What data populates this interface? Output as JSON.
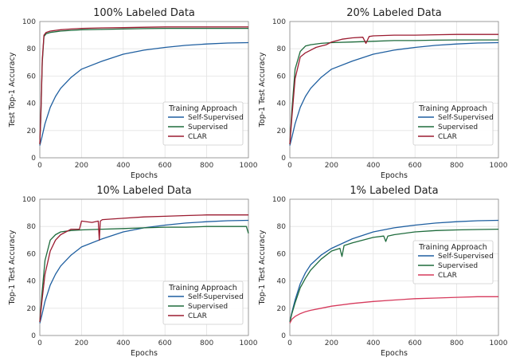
{
  "colors": {
    "self_supervised": "#1f5fa0",
    "supervised": "#1e6b3c",
    "clar": "#9b1b30",
    "clar_1pct": "#d63a5c",
    "grid": "#e3e3e3",
    "axis": "#888888"
  },
  "chart_data": [
    {
      "type": "line",
      "title": "100% Labeled Data",
      "xlabel": "Epochs",
      "ylabel": "Test Top-1 Accuracy",
      "xlim": [
        0,
        1000
      ],
      "ylim": [
        0,
        100
      ],
      "xticks": [
        "0",
        "200",
        "400",
        "600",
        "800",
        "1000"
      ],
      "yticks": [
        "0",
        "20",
        "40",
        "60",
        "80",
        "100"
      ],
      "grid": true,
      "legend": {
        "title": "Training Approach",
        "placement": "bottom-right"
      },
      "series": [
        {
          "name": "Self-Supervised",
          "color": "#1f5fa0",
          "x": [
            0,
            10,
            25,
            50,
            75,
            100,
            150,
            200,
            300,
            400,
            500,
            600,
            700,
            800,
            900,
            1000
          ],
          "y": [
            9,
            15,
            25,
            37,
            45,
            51,
            59,
            65,
            71,
            76,
            79,
            81,
            82.5,
            83.5,
            84.2,
            84.5
          ]
        },
        {
          "name": "Supervised",
          "color": "#1e6b3c",
          "x": [
            0,
            5,
            12,
            20,
            30,
            50,
            75,
            100,
            150,
            200,
            300,
            400,
            500,
            600,
            700,
            800,
            900,
            1000
          ],
          "y": [
            10,
            30,
            70,
            89,
            91,
            92,
            92.5,
            93,
            93.5,
            94,
            94.2,
            94.5,
            94.8,
            95,
            95,
            95,
            95,
            95
          ]
        },
        {
          "name": "CLAR",
          "color": "#9b1b30",
          "x": [
            0,
            5,
            12,
            20,
            30,
            50,
            75,
            100,
            150,
            200,
            300,
            400,
            500,
            600,
            700,
            800,
            900,
            1000
          ],
          "y": [
            10,
            32,
            72,
            90,
            92,
            93,
            93.5,
            94,
            94.5,
            95,
            95.3,
            95.5,
            95.8,
            96,
            96,
            96,
            96,
            96
          ]
        }
      ]
    },
    {
      "type": "line",
      "title": "20% Labeled Data",
      "xlabel": "Epochs",
      "ylabel": "Top-1 Test Accuracy",
      "xlim": [
        0,
        1000
      ],
      "ylim": [
        0,
        100
      ],
      "xticks": [
        "0",
        "200",
        "400",
        "600",
        "800",
        "1000"
      ],
      "yticks": [
        "0",
        "20",
        "40",
        "60",
        "80",
        "100"
      ],
      "grid": true,
      "legend": {
        "title": "Training Approach",
        "placement": "bottom-right"
      },
      "series": [
        {
          "name": "Self-Supervised",
          "color": "#1f5fa0",
          "x": [
            0,
            10,
            25,
            50,
            75,
            100,
            150,
            200,
            300,
            400,
            500,
            600,
            700,
            800,
            900,
            1000
          ],
          "y": [
            9,
            15,
            25,
            37,
            45,
            51,
            59,
            65,
            71,
            76,
            79,
            81,
            82.5,
            83.5,
            84.2,
            84.5
          ]
        },
        {
          "name": "Supervised",
          "color": "#1e6b3c",
          "x": [
            0,
            10,
            25,
            50,
            75,
            100,
            150,
            200,
            300,
            400,
            500,
            600,
            700,
            800,
            900,
            1000
          ],
          "y": [
            10,
            35,
            65,
            78,
            82,
            83,
            84,
            84.5,
            85,
            85.5,
            86,
            86,
            86.3,
            86.5,
            86.5,
            86.5
          ]
        },
        {
          "name": "CLAR",
          "color": "#9b1b30",
          "x": [
            0,
            10,
            25,
            50,
            75,
            100,
            125,
            150,
            175,
            200,
            250,
            300,
            350,
            365,
            380,
            400,
            500,
            600,
            700,
            800,
            900,
            1000
          ],
          "y": [
            10,
            30,
            58,
            74,
            77,
            79,
            81,
            82,
            83,
            85,
            87,
            88,
            88.5,
            84,
            89,
            89.5,
            90,
            90,
            90.3,
            90.5,
            90.5,
            90.5
          ]
        }
      ]
    },
    {
      "type": "line",
      "title": "10% Labeled Data",
      "xlabel": "Epochs",
      "ylabel": "Top-1 Test Accuracy",
      "xlim": [
        0,
        1000
      ],
      "ylim": [
        0,
        100
      ],
      "xticks": [
        "0",
        "200",
        "400",
        "600",
        "800",
        "1000"
      ],
      "yticks": [
        "0",
        "20",
        "40",
        "60",
        "80",
        "100"
      ],
      "grid": true,
      "legend": {
        "title": "Training Approach",
        "placement": "bottom-right"
      },
      "series": [
        {
          "name": "Self-Supervised",
          "color": "#1f5fa0",
          "x": [
            0,
            10,
            25,
            50,
            75,
            100,
            150,
            200,
            300,
            400,
            500,
            600,
            700,
            800,
            900,
            1000
          ],
          "y": [
            9,
            15,
            25,
            37,
            45,
            51,
            59,
            65,
            71,
            76,
            79,
            81,
            82.5,
            83.5,
            84.2,
            84.5
          ]
        },
        {
          "name": "Supervised",
          "color": "#1e6b3c",
          "x": [
            0,
            10,
            25,
            50,
            75,
            100,
            150,
            200,
            300,
            400,
            500,
            600,
            700,
            800,
            900,
            990,
            1000
          ],
          "y": [
            10,
            30,
            55,
            70,
            74,
            76,
            77,
            77.5,
            78,
            78.5,
            79,
            79.5,
            79.5,
            80,
            80,
            80,
            75
          ]
        },
        {
          "name": "CLAR",
          "color": "#9b1b30",
          "x": [
            0,
            10,
            25,
            50,
            75,
            100,
            150,
            190,
            200,
            250,
            280,
            285,
            290,
            300,
            400,
            500,
            600,
            700,
            800,
            900,
            1000
          ],
          "y": [
            10,
            25,
            45,
            62,
            70,
            74,
            78,
            78,
            84,
            83,
            84,
            70,
            84,
            85,
            86,
            87,
            87.5,
            88,
            88.5,
            88.5,
            88.5
          ]
        }
      ]
    },
    {
      "type": "line",
      "title": "1% Labeled Data",
      "xlabel": "Epochs",
      "ylabel": "Top-1 Test Accuracy",
      "xlim": [
        0,
        1000
      ],
      "ylim": [
        0,
        100
      ],
      "xticks": [
        "0",
        "200",
        "400",
        "600",
        "800",
        "1000"
      ],
      "yticks": [
        "0",
        "20",
        "40",
        "60",
        "80",
        "100"
      ],
      "grid": true,
      "legend": {
        "title": "Training Approach",
        "placement": "middle-right"
      },
      "series": [
        {
          "name": "Self-Supervised",
          "color": "#1f5fa0",
          "x": [
            0,
            10,
            25,
            50,
            75,
            100,
            150,
            200,
            300,
            400,
            500,
            600,
            700,
            800,
            900,
            1000
          ],
          "y": [
            10,
            17,
            26,
            38,
            46,
            52,
            59,
            64,
            71,
            76,
            79,
            81,
            82.5,
            83.5,
            84.2,
            84.5
          ]
        },
        {
          "name": "Supervised",
          "color": "#1e6b3c",
          "x": [
            0,
            10,
            25,
            50,
            75,
            100,
            150,
            200,
            240,
            250,
            260,
            300,
            400,
            450,
            460,
            470,
            500,
            600,
            700,
            800,
            900,
            1000
          ],
          "y": [
            10,
            16,
            24,
            35,
            42,
            48,
            56,
            62,
            64,
            58,
            66,
            68,
            72,
            73,
            69,
            73,
            74,
            76,
            77,
            77.5,
            77.8,
            78
          ]
        },
        {
          "name": "CLAR",
          "color": "#d63a5c",
          "x": [
            0,
            10,
            25,
            50,
            75,
            100,
            150,
            200,
            300,
            400,
            500,
            600,
            700,
            800,
            900,
            1000
          ],
          "y": [
            9,
            12,
            14,
            16,
            17.5,
            18.5,
            20,
            21.5,
            23.5,
            25,
            26,
            27,
            27.5,
            28,
            28.5,
            28.5
          ]
        }
      ]
    }
  ]
}
